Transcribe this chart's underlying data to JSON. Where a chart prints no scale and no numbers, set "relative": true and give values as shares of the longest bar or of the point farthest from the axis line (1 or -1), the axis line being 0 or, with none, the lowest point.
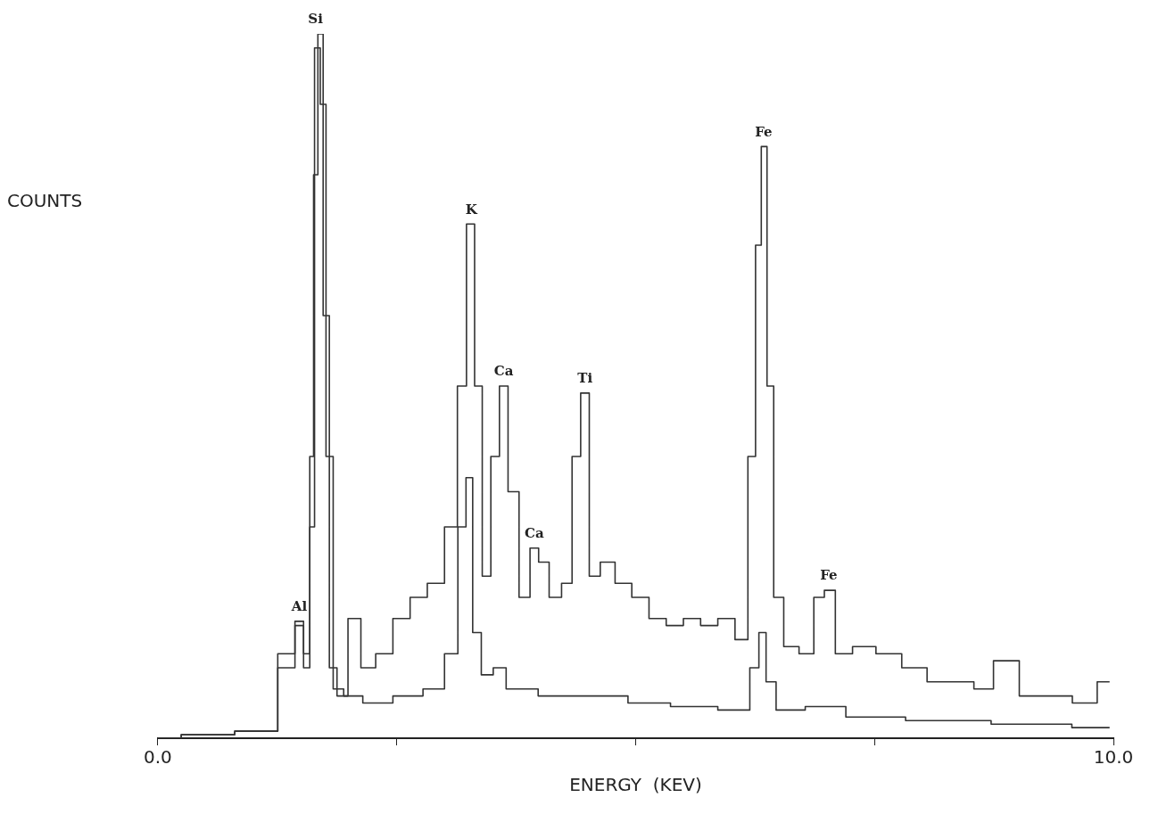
{
  "chart_data": {
    "type": "step",
    "relative": true,
    "xlabel": "ENERGY  (KEV)",
    "ylabel": "COUNTS",
    "xlim": [
      0,
      10
    ],
    "xticks": [
      {
        "value": 0,
        "label": "0.0"
      },
      {
        "value": 2.5,
        "label": null
      },
      {
        "value": 5,
        "label": null
      },
      {
        "value": 7.5,
        "label": null
      },
      {
        "value": 10,
        "label": "10.0"
      }
    ],
    "grid": false,
    "series": [
      {
        "color": "#333333",
        "x": [
          0,
          0.49,
          1.12,
          1.39,
          1.48,
          1.57,
          1.61,
          1.65,
          1.7,
          1.76,
          1.83,
          1.92,
          2.06,
          2.19,
          2.37,
          2.55,
          2.73,
          2.91,
          3.09,
          3.18,
          3.28,
          3.35,
          3.44,
          3.53,
          3.62,
          3.71,
          3.85,
          3.94,
          4.03,
          4.16,
          4.29,
          4.38,
          4.47,
          4.56,
          4.7,
          4.87,
          5.05,
          5.23,
          5.41,
          5.59,
          5.77,
          5.95,
          6.13,
          6.22,
          6.29,
          6.34,
          6.41,
          6.48,
          6.62,
          6.8,
          6.93,
          7.02,
          7.16,
          7.38,
          7.65,
          7.92,
          8.18,
          8.45,
          8.63,
          8.86,
          9.17,
          9.44,
          9.7,
          9.96
        ],
        "values": [
          0,
          0.005,
          0.01,
          0.12,
          0.166,
          0.12,
          0.4,
          0.8,
          1.0,
          0.6,
          0.1,
          0.06,
          0.17,
          0.1,
          0.12,
          0.17,
          0.2,
          0.22,
          0.3,
          0.5,
          0.73,
          0.5,
          0.23,
          0.4,
          0.5,
          0.35,
          0.2,
          0.27,
          0.25,
          0.2,
          0.22,
          0.4,
          0.49,
          0.23,
          0.25,
          0.22,
          0.2,
          0.17,
          0.16,
          0.17,
          0.16,
          0.17,
          0.14,
          0.4,
          0.7,
          0.84,
          0.5,
          0.2,
          0.13,
          0.12,
          0.2,
          0.21,
          0.12,
          0.13,
          0.12,
          0.1,
          0.08,
          0.08,
          0.07,
          0.11,
          0.06,
          0.06,
          0.05,
          0.08
        ]
      },
      {
        "color": "#333333",
        "x": [
          0,
          0.49,
          1.12,
          1.39,
          1.48,
          1.57,
          1.61,
          1.67,
          1.73,
          1.79,
          1.88,
          2.01,
          2.28,
          2.64,
          2.91,
          3.09,
          3.19,
          3.26,
          3.33,
          3.44,
          3.58,
          3.71,
          4.25,
          4.7,
          5.14,
          5.59,
          6.13,
          6.26,
          6.32,
          6.41,
          6.53,
          7.02,
          7.38,
          8.27,
          9.17,
          9.96
        ],
        "values": [
          0,
          0.005,
          0.01,
          0.1,
          0.16,
          0.1,
          0.3,
          0.98,
          0.9,
          0.4,
          0.07,
          0.06,
          0.05,
          0.06,
          0.07,
          0.12,
          0.3,
          0.37,
          0.15,
          0.09,
          0.1,
          0.07,
          0.06,
          0.06,
          0.05,
          0.045,
          0.04,
          0.1,
          0.15,
          0.08,
          0.04,
          0.045,
          0.03,
          0.025,
          0.02,
          0.015
        ]
      }
    ],
    "annotations": [
      {
        "text": "Al",
        "x": 1.48,
        "y": 0.166
      },
      {
        "text": "Si",
        "x": 1.65,
        "y": 1.0
      },
      {
        "text": "K",
        "x": 3.28,
        "y": 0.73
      },
      {
        "text": "Ca",
        "x": 3.62,
        "y": 0.5
      },
      {
        "text": "Ca",
        "x": 3.94,
        "y": 0.27
      },
      {
        "text": "Ti",
        "x": 4.47,
        "y": 0.49
      },
      {
        "text": "Fe",
        "x": 6.34,
        "y": 0.84
      },
      {
        "text": "Fe",
        "x": 7.02,
        "y": 0.21
      }
    ]
  }
}
